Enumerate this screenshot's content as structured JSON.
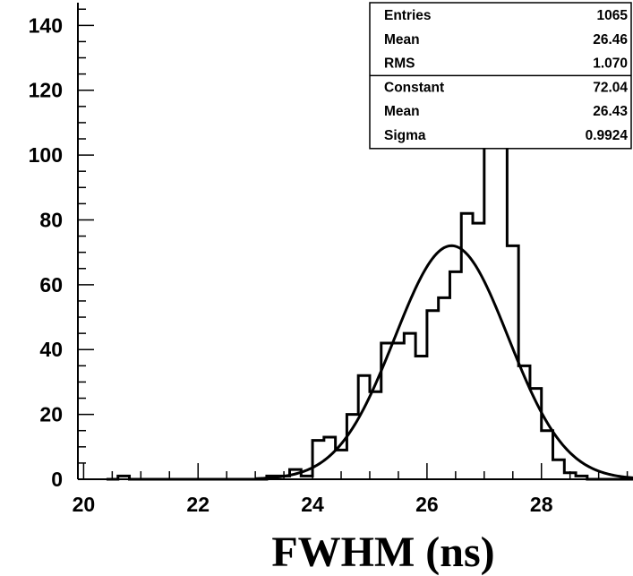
{
  "chart_data": {
    "type": "histogram",
    "title": "",
    "xlabel": "FWHM (ns)",
    "ylabel": "",
    "xlim": [
      19.9,
      29.6
    ],
    "ylim": [
      0,
      147
    ],
    "grid": false,
    "x_tick_labels": [
      "20",
      "22",
      "24",
      "26",
      "28"
    ],
    "y_tick_labels": [
      "0",
      "20",
      "40",
      "60",
      "80",
      "100",
      "120",
      "140"
    ],
    "bin_width": 0.2,
    "bin_start": 20.4,
    "bin_counts": [
      0,
      1,
      0,
      0,
      0,
      0,
      0,
      0,
      0,
      0,
      0,
      0,
      0,
      0,
      1,
      1,
      3,
      1,
      12,
      13,
      9,
      20,
      32,
      27,
      42,
      42,
      45,
      38,
      52,
      56,
      64,
      82,
      79,
      105,
      109,
      72,
      35,
      28,
      15,
      6,
      2,
      1,
      0,
      0,
      0,
      0
    ],
    "fit": {
      "function": "gaus",
      "constant": 72.04,
      "mean": 26.43,
      "sigma": 0.9924
    },
    "stats_box": {
      "position": "top-right",
      "rows": [
        {
          "label": "Entries",
          "value": "1065"
        },
        {
          "label": "Mean",
          "value": "26.46"
        },
        {
          "label": "RMS",
          "value": "1.070"
        },
        {
          "label": "Constant",
          "value": "72.04"
        },
        {
          "label": "Mean",
          "value": "26.43"
        },
        {
          "label": "Sigma",
          "value": "0.9924"
        }
      ]
    }
  }
}
